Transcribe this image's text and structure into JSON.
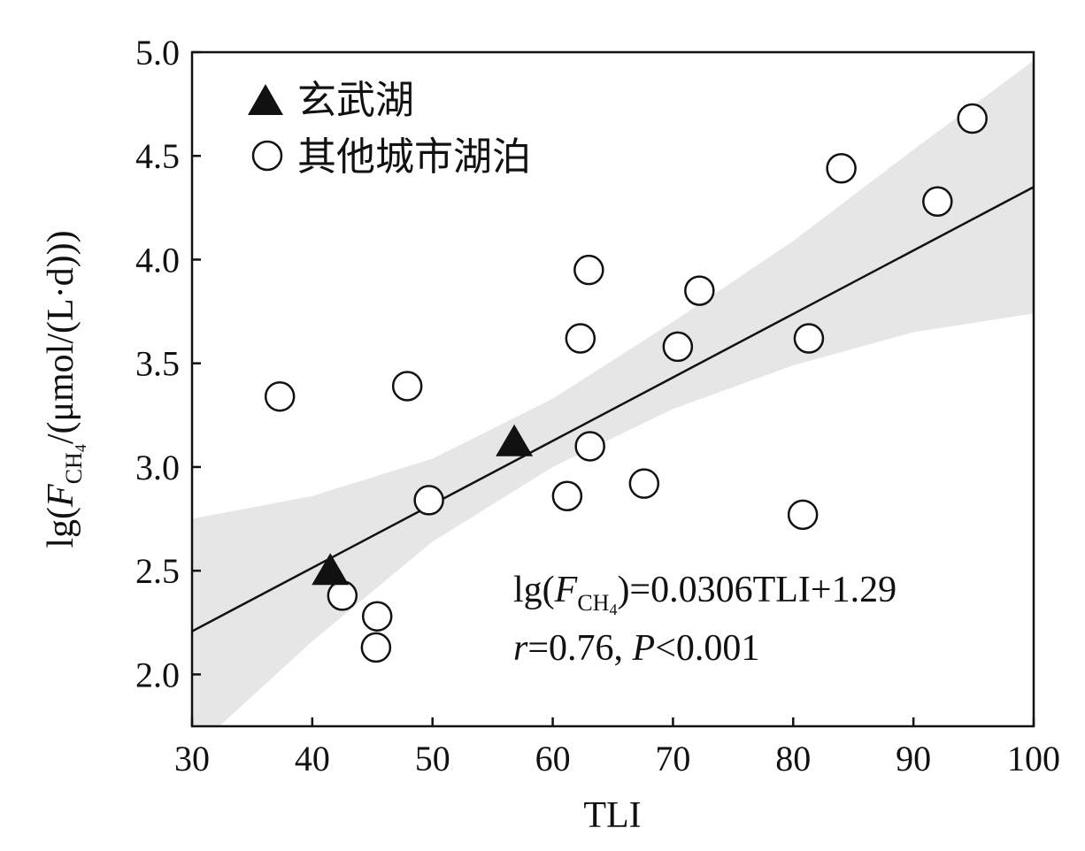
{
  "chart_data": {
    "type": "scatter",
    "xlabel": "TLI",
    "ylabel": {
      "prefix": "lg(",
      "var": "F",
      "sub": "CH",
      "subsub": "4",
      "suffix": "/(μmol/(L·d)))"
    },
    "xlim": [
      30,
      100
    ],
    "ylim": [
      1.75,
      5.0
    ],
    "x_ticks": [
      "30",
      "40",
      "50",
      "60",
      "70",
      "80",
      "90",
      "100"
    ],
    "y_ticks": [
      "2.0",
      "2.5",
      "3.0",
      "3.5",
      "4.0",
      "4.5",
      "5.0"
    ],
    "series": [
      {
        "name": "玄武湖",
        "marker": "triangle",
        "color": "#111111",
        "points": [
          {
            "x": 41.5,
            "y": 2.49
          },
          {
            "x": 56.8,
            "y": 3.11
          }
        ]
      },
      {
        "name": "其他城市湖泊",
        "marker": "circle",
        "color": "#111111",
        "points": [
          {
            "x": 37.3,
            "y": 3.34
          },
          {
            "x": 42.5,
            "y": 2.38
          },
          {
            "x": 45.4,
            "y": 2.28
          },
          {
            "x": 45.3,
            "y": 2.13
          },
          {
            "x": 47.9,
            "y": 3.39
          },
          {
            "x": 49.7,
            "y": 2.84
          },
          {
            "x": 61.2,
            "y": 2.86
          },
          {
            "x": 62.3,
            "y": 3.62
          },
          {
            "x": 63.0,
            "y": 3.95
          },
          {
            "x": 63.1,
            "y": 3.1
          },
          {
            "x": 67.6,
            "y": 2.92
          },
          {
            "x": 70.4,
            "y": 3.58
          },
          {
            "x": 72.2,
            "y": 3.85
          },
          {
            "x": 80.8,
            "y": 2.77
          },
          {
            "x": 81.3,
            "y": 3.62
          },
          {
            "x": 84.0,
            "y": 4.44
          },
          {
            "x": 92.0,
            "y": 4.28
          },
          {
            "x": 94.9,
            "y": 4.68
          }
        ]
      }
    ],
    "fit": {
      "slope": 0.0306,
      "intercept": 1.29,
      "color": "#111111"
    },
    "confidence_band": {
      "color": "#e6e6e6",
      "lower": [
        {
          "x": 30,
          "y": 1.63
        },
        {
          "x": 40,
          "y": 2.16
        },
        {
          "x": 50,
          "y": 2.64
        },
        {
          "x": 60,
          "y": 3.0
        },
        {
          "x": 70,
          "y": 3.28
        },
        {
          "x": 80,
          "y": 3.49
        },
        {
          "x": 90,
          "y": 3.65
        },
        {
          "x": 100,
          "y": 3.74
        }
      ],
      "upper": [
        {
          "x": 30,
          "y": 2.75
        },
        {
          "x": 40,
          "y": 2.86
        },
        {
          "x": 50,
          "y": 3.04
        },
        {
          "x": 60,
          "y": 3.33
        },
        {
          "x": 70,
          "y": 3.7
        },
        {
          "x": 80,
          "y": 4.09
        },
        {
          "x": 90,
          "y": 4.53
        },
        {
          "x": 100,
          "y": 4.96
        }
      ]
    },
    "equation": {
      "line1_prefix": "lg(",
      "line1_var": "F",
      "line1_sub": "CH",
      "line1_subsub": "4",
      "line1_suffix": ")=0.0306TLI+1.29",
      "line2_r": "r",
      "line2_mid": "=0.76, ",
      "line2_p": "P",
      "line2_end": "<0.001"
    },
    "legend_position": "top-left",
    "grid": false
  }
}
